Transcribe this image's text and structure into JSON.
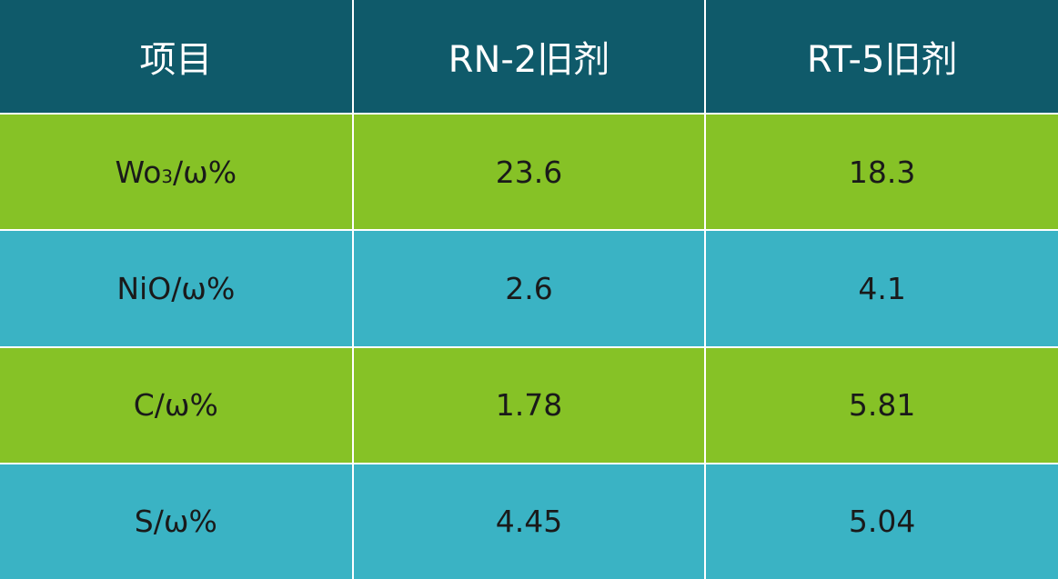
{
  "table": {
    "headers": [
      "项目",
      "RN-2旧剂",
      "RT-5旧剂"
    ],
    "rows": [
      {
        "item": "Wo",
        "item_sub": "3",
        "item_suffix": "/ω%",
        "rn2": "23.6",
        "rt5": "18.3",
        "color": "green"
      },
      {
        "item": "NiO/ω%",
        "rn2": "2.6",
        "rt5": "4.1",
        "color": "cyan"
      },
      {
        "item": "C/ω%",
        "rn2": "1.78",
        "rt5": "5.81",
        "color": "green"
      },
      {
        "item": "S/ω%",
        "rn2": "4.45",
        "rt5": "5.04",
        "color": "cyan"
      }
    ]
  },
  "colors": {
    "header": "#0f5a6a",
    "green": "#86c226",
    "cyan": "#3ab3c4"
  }
}
